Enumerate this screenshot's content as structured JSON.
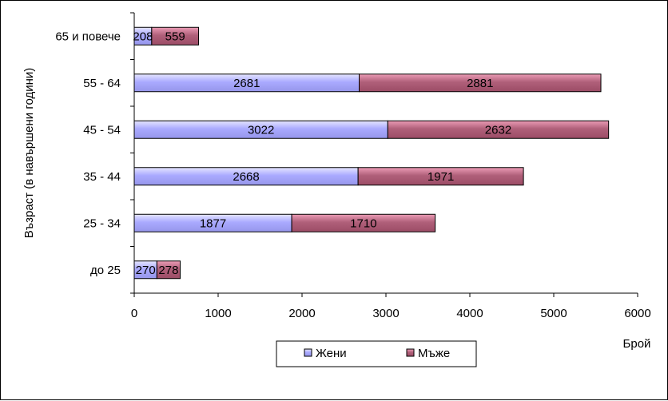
{
  "chart_data": {
    "type": "bar",
    "orientation": "horizontal",
    "stacked": true,
    "categories": [
      "65 и повече",
      "55 - 64",
      "45 - 54",
      "35 - 44",
      "25 - 34",
      "до 25"
    ],
    "series": [
      {
        "name": "Жени",
        "values": [
          208,
          2681,
          3022,
          2668,
          1877,
          270
        ],
        "color": "#aaaaff"
      },
      {
        "name": "Мъже",
        "values": [
          559,
          2881,
          2632,
          1971,
          1710,
          278
        ],
        "color": "#b0607a"
      }
    ],
    "xlim": [
      0,
      6000
    ],
    "xticks": [
      0,
      1000,
      2000,
      3000,
      4000,
      5000,
      6000
    ],
    "xlabel": "Брой",
    "ylabel": "Възраст (в навършени години)",
    "grid": false,
    "legend_position": "bottom"
  }
}
